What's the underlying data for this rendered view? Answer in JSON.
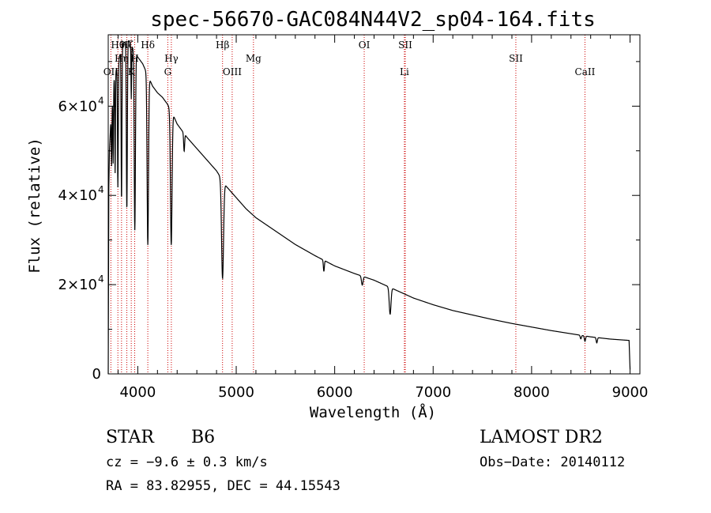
{
  "chart_data": {
    "type": "line",
    "title": "spec-56670-GAC084N44V2_sp04-164.fits",
    "xlabel": "Wavelength (Å)",
    "ylabel": "Flux (relative)",
    "xlim": [
      3700,
      9100
    ],
    "ylim": [
      0,
      76000
    ],
    "x_ticks": [
      {
        "value": 4000,
        "label": "4000"
      },
      {
        "value": 5000,
        "label": "5000"
      },
      {
        "value": 6000,
        "label": "6000"
      },
      {
        "value": 7000,
        "label": "7000"
      },
      {
        "value": 8000,
        "label": "8000"
      },
      {
        "value": 9000,
        "label": "9000"
      }
    ],
    "y_ticks": [
      {
        "value": 0,
        "mant": "0",
        "exp": ""
      },
      {
        "value": 20000,
        "mant": "2×10",
        "exp": "4"
      },
      {
        "value": 40000,
        "mant": "4×10",
        "exp": "4"
      },
      {
        "value": 60000,
        "mant": "6×10",
        "exp": "4"
      }
    ],
    "spectrum": {
      "continuum": [
        [
          3700,
          0
        ],
        [
          3706,
          42000
        ],
        [
          3712,
          50000
        ],
        [
          3725,
          56000
        ],
        [
          3760,
          66000
        ],
        [
          3800,
          70000
        ],
        [
          3850,
          74000
        ],
        [
          3900,
          75000
        ],
        [
          3950,
          73000
        ],
        [
          4000,
          71000
        ],
        [
          4050,
          69500
        ],
        [
          4100,
          67000
        ],
        [
          4150,
          64500
        ],
        [
          4200,
          63000
        ],
        [
          4250,
          62000
        ],
        [
          4300,
          60500
        ],
        [
          4350,
          58500
        ],
        [
          4400,
          56000
        ],
        [
          4500,
          53000
        ],
        [
          4600,
          50500
        ],
        [
          4700,
          48000
        ],
        [
          4800,
          45500
        ],
        [
          4900,
          42000
        ],
        [
          5000,
          39500
        ],
        [
          5100,
          37000
        ],
        [
          5200,
          35000
        ],
        [
          5400,
          32000
        ],
        [
          5600,
          29000
        ],
        [
          5800,
          26500
        ],
        [
          6000,
          24200
        ],
        [
          6200,
          22500
        ],
        [
          6400,
          21000
        ],
        [
          6600,
          19000
        ],
        [
          6800,
          17000
        ],
        [
          7000,
          15500
        ],
        [
          7200,
          14200
        ],
        [
          7400,
          13200
        ],
        [
          7600,
          12200
        ],
        [
          7800,
          11300
        ],
        [
          8000,
          10500
        ],
        [
          8200,
          9700
        ],
        [
          8400,
          9000
        ],
        [
          8600,
          8300
        ],
        [
          8800,
          7800
        ],
        [
          8990,
          7500
        ],
        [
          9000,
          1000
        ]
      ],
      "absorption": [
        {
          "center": 3734,
          "depth": 12000,
          "width": 3
        },
        {
          "center": 3750,
          "depth": 16000,
          "width": 3
        },
        {
          "center": 3770,
          "depth": 22000,
          "width": 3
        },
        {
          "center": 3798,
          "depth": 28000,
          "width": 4
        },
        {
          "center": 3835,
          "depth": 34000,
          "width": 4
        },
        {
          "center": 3889,
          "depth": 38000,
          "width": 5
        },
        {
          "center": 3934,
          "depth": 12000,
          "width": 3
        },
        {
          "center": 3970,
          "depth": 40000,
          "width": 6
        },
        {
          "center": 4102,
          "depth": 38000,
          "width": 7
        },
        {
          "center": 4340,
          "depth": 30000,
          "width": 8
        },
        {
          "center": 4471,
          "depth": 4000,
          "width": 5
        },
        {
          "center": 4861,
          "depth": 22000,
          "width": 10
        },
        {
          "center": 5890,
          "depth": 2500,
          "width": 5
        },
        {
          "center": 6280,
          "depth": 2000,
          "width": 8
        },
        {
          "center": 6563,
          "depth": 6000,
          "width": 9
        },
        {
          "center": 8500,
          "depth": 800,
          "width": 6
        },
        {
          "center": 8542,
          "depth": 1200,
          "width": 6
        },
        {
          "center": 8662,
          "depth": 1200,
          "width": 6
        }
      ]
    },
    "line_markers": [
      {
        "label": "OII",
        "wavelength": 3727,
        "row": 3
      },
      {
        "label": "Hθ",
        "wavelength": 3798,
        "row": 1
      },
      {
        "label": "Hη",
        "wavelength": 3835,
        "row": 2
      },
      {
        "label": "Hζ",
        "wavelength": 3889,
        "row": 1
      },
      {
        "label": "K",
        "wavelength": 3934,
        "row": 3
      },
      {
        "label": "H",
        "wavelength": 3969,
        "row": 2
      },
      {
        "label": "Hδ",
        "wavelength": 4102,
        "row": 1
      },
      {
        "label": "G",
        "wavelength": 4305,
        "row": 3
      },
      {
        "label": "Hγ",
        "wavelength": 4341,
        "row": 2
      },
      {
        "label": "Hβ",
        "wavelength": 4861,
        "row": 1
      },
      {
        "label": "OIII",
        "wavelength": 4959,
        "row": 3
      },
      {
        "label": "Mg",
        "wavelength": 5175,
        "row": 2
      },
      {
        "label": "OI",
        "wavelength": 6300,
        "row": 1
      },
      {
        "label": "SII",
        "wavelength": 6717,
        "row": 1
      },
      {
        "label": "Li",
        "wavelength": 6708,
        "row": 3
      },
      {
        "label": "SII",
        "wavelength": 7840,
        "row": 2
      },
      {
        "label": "CaII",
        "wavelength": 8542,
        "row": 3
      }
    ],
    "marker_color": "#cc0000"
  },
  "info": {
    "class_label": "STAR",
    "subclass": "B6",
    "survey": "LAMOST DR2",
    "cz": "cz = −9.6 ± 0.3 km/s",
    "obs_date": "Obs−Date: 20140112",
    "radec": "RA =  83.82955, DEC =  44.15543"
  }
}
